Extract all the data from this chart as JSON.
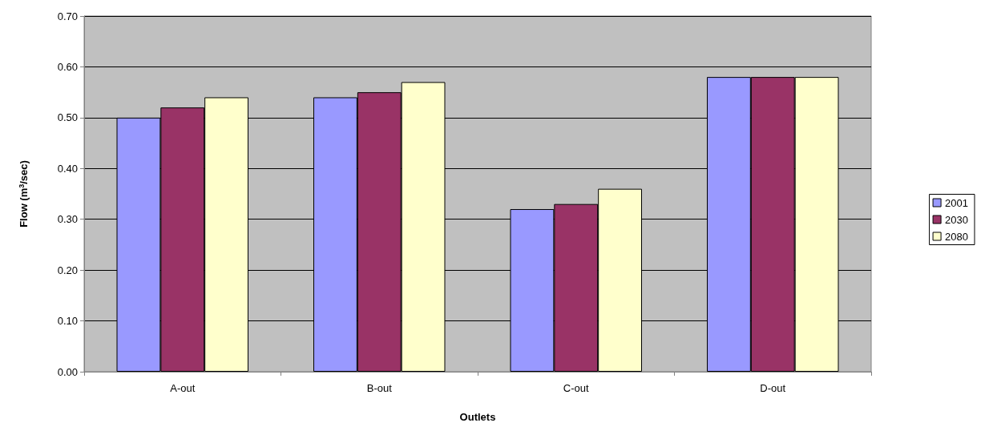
{
  "chart_data": {
    "type": "bar",
    "xlabel": "Outlets",
    "ylabel": "Flow (m$^{3}$/sec)",
    "categories": [
      "A-out",
      "B-out",
      "C-out",
      "D-out"
    ],
    "series": [
      {
        "name": "2001",
        "color": "#9999ff",
        "values": [
          0.5,
          0.54,
          0.32,
          0.58
        ]
      },
      {
        "name": "2030",
        "color": "#993366",
        "values": [
          0.52,
          0.55,
          0.33,
          0.58
        ]
      },
      {
        "name": "2080",
        "color": "#ffffcc",
        "values": [
          0.54,
          0.57,
          0.36,
          0.58
        ]
      }
    ],
    "ylim": [
      0,
      0.7
    ],
    "yticks": [
      {
        "value": 0,
        "label": "0.00"
      },
      {
        "value": 0.1,
        "label": "0.10"
      },
      {
        "value": 0.2,
        "label": "0.20"
      },
      {
        "value": 0.3,
        "label": "0.30"
      },
      {
        "value": 0.4,
        "label": "0.40"
      },
      {
        "value": 0.5,
        "label": "0.50"
      },
      {
        "value": 0.6,
        "label": "0.60"
      },
      {
        "value": 0.7,
        "label": "0.70"
      }
    ],
    "grid": "y",
    "legend": "right"
  }
}
